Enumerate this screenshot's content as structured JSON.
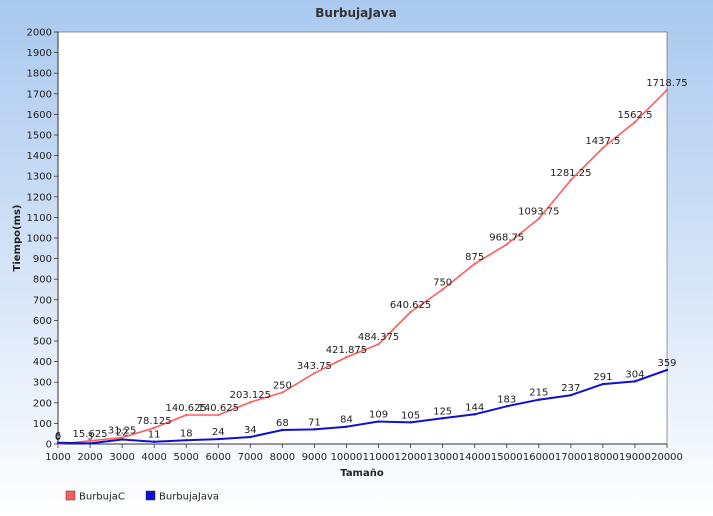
{
  "chart_data": {
    "type": "line",
    "title": "BurbujaJava",
    "xlabel": "Tamaño",
    "ylabel": "Tiempo(ms)",
    "x": [
      1000,
      2000,
      3000,
      4000,
      5000,
      6000,
      7000,
      8000,
      9000,
      10000,
      11000,
      12000,
      13000,
      14000,
      15000,
      16000,
      17000,
      18000,
      19000,
      20000
    ],
    "x_tick_labels": [
      "1000",
      "2000",
      "3000",
      "4000",
      "5000",
      "6000",
      "7000",
      "8000",
      "9000",
      "10000",
      "11000",
      "12000",
      "13000",
      "14000",
      "15000",
      "16000",
      "17000",
      "18000",
      "19000",
      "20000"
    ],
    "ylim": [
      0,
      2000
    ],
    "y_ticks": [
      0,
      100,
      200,
      300,
      400,
      500,
      600,
      700,
      800,
      900,
      1000,
      1100,
      1200,
      1300,
      1400,
      1500,
      1600,
      1700,
      1800,
      1900,
      2000
    ],
    "y_tick_labels": [
      "0",
      "100",
      "200",
      "300",
      "400",
      "500",
      "600",
      "700",
      "800",
      "900",
      "1000",
      "1100",
      "1200",
      "1300",
      "1400",
      "1500",
      "1600",
      "1700",
      "1800",
      "1900",
      "2000"
    ],
    "grid": false,
    "legend_position": "bottom-left",
    "series": [
      {
        "name": "BurbujaC",
        "color": "#ff5c5c",
        "values": [
          0,
          15.625,
          31.25,
          78.125,
          140.625,
          140.625,
          203.125,
          250,
          343.75,
          421.875,
          484.375,
          640.625,
          750,
          875,
          968.75,
          1093.75,
          1281.25,
          1437.5,
          1562.5,
          1718.75
        ],
        "labels": [
          "0",
          "15.625",
          "31.25",
          "78.125",
          "140.625",
          "140.625",
          "203.125",
          "250",
          "343.75",
          "421.875",
          "484.375",
          "640.625",
          "750",
          "875",
          "968.75",
          "1093.75",
          "1281.25",
          "1437.5",
          "1562.5",
          "1718.75"
        ]
      },
      {
        "name": "BurbujaJava",
        "color": "#1010d0",
        "values": [
          6,
          3,
          22,
          11,
          18,
          24,
          34,
          68,
          71,
          84,
          109,
          105,
          125,
          144,
          183,
          215,
          237,
          291,
          304,
          359
        ],
        "labels": [
          "6",
          "3",
          "22",
          "11",
          "18",
          "24",
          "34",
          "68",
          "71",
          "84",
          "109",
          "105",
          "125",
          "144",
          "183",
          "215",
          "237",
          "291",
          "304",
          "359"
        ]
      }
    ]
  }
}
